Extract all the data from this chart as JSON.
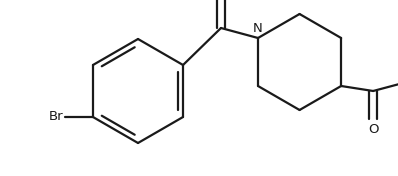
{
  "background_color": "#ffffff",
  "line_color": "#1a1a1a",
  "line_width": 1.6,
  "fig_width": 3.98,
  "fig_height": 1.76,
  "dpi": 100,
  "atoms": {
    "Br": {
      "label": "Br",
      "fontsize": 9.5
    },
    "N": {
      "label": "N",
      "fontsize": 9.5
    },
    "O": {
      "label": "O",
      "fontsize": 9.5
    }
  }
}
